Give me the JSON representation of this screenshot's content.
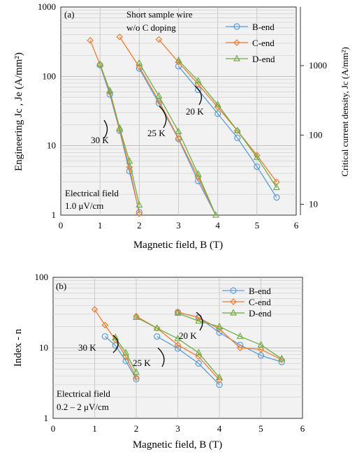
{
  "chart_data": [
    {
      "type": "line",
      "panel_label": "(a)",
      "title": "",
      "annotation_title": [
        "Short sample wire",
        "w/o C doping"
      ],
      "field_note": [
        "Electrical  field",
        "1.0 μV/cm"
      ],
      "xlabel": "Magnetic field, B (T)",
      "ylabel": "Engineering Jc , Je (A/mm²)",
      "ylabel2": "Critical current density, Jc (A/mm²)",
      "xlim": [
        0,
        6
      ],
      "ylim": [
        1,
        1000
      ],
      "y_scale": "log",
      "x_ticks": [
        "0",
        "1",
        "2",
        "3",
        "4",
        "5",
        "6"
      ],
      "y_ticks": [
        "1",
        "10",
        "100",
        "1000"
      ],
      "y2_ticks": [
        "10",
        "100",
        "1000"
      ],
      "grid": true,
      "legend_position": "top-right",
      "temperature_labels": [
        "30 K",
        "25 K",
        "20 K"
      ],
      "series": [
        {
          "name": "B-end",
          "color": "#5b9bd5",
          "marker": "circle",
          "groups": [
            {
              "x": [
                1.0,
                1.25,
                1.5,
                1.75,
                2.0
              ],
              "y": [
                145,
                55,
                16.5,
                4.3,
                1.1
              ]
            },
            {
              "x": [
                2.0,
                2.5,
                3.0,
                3.5,
                3.95
              ],
              "y": [
                130,
                41,
                12.5,
                3.1,
                0.8
              ]
            },
            {
              "x": [
                3.0,
                3.5,
                4.0,
                4.5,
                5.0,
                5.5
              ],
              "y": [
                140,
                64,
                29,
                13,
                5,
                1.8
              ]
            }
          ]
        },
        {
          "name": "C-end",
          "color": "#ed7d31",
          "marker": "diamond",
          "groups": [
            {
              "x": [
                0.75,
                1.0,
                1.25,
                1.5,
                1.75,
                2.0
              ],
              "y": [
                330,
                148,
                59,
                17,
                4.9,
                1.05
              ]
            },
            {
              "x": [
                1.5,
                2.0,
                2.5,
                3.0,
                3.5,
                3.95
              ],
              "y": [
                370,
                137,
                44,
                12.8,
                3.5,
                0.85
              ]
            },
            {
              "x": [
                2.5,
                3.0,
                3.5,
                4.0,
                4.5,
                5.0,
                5.5
              ],
              "y": [
                340,
                160,
                77,
                36,
                16.5,
                7.3,
                3
              ]
            }
          ]
        },
        {
          "name": "D-end",
          "color": "#70ad47",
          "marker": "triangle",
          "groups": [
            {
              "x": [
                1.0,
                1.25,
                1.5,
                1.75,
                2.0
              ],
              "y": [
                150,
                62,
                18,
                6,
                1.4
              ]
            },
            {
              "x": [
                2.0,
                2.5,
                3.0,
                3.5,
                3.95
              ],
              "y": [
                155,
                52,
                16,
                3.9,
                1.0
              ]
            },
            {
              "x": [
                3.0,
                3.5,
                4.0,
                4.5,
                5.0,
                5.5
              ],
              "y": [
                170,
                86,
                39,
                16.5,
                6.8,
                2.5
              ]
            }
          ]
        }
      ]
    },
    {
      "type": "line",
      "panel_label": "(b)",
      "title": "",
      "field_note": [
        "Electrical  field",
        "0.2 – 2 μV/cm"
      ],
      "xlabel": "Magnetic field, B (T)",
      "ylabel": "Index - n",
      "xlim": [
        0,
        6
      ],
      "ylim": [
        1,
        100
      ],
      "y_scale": "log",
      "x_ticks": [
        "0",
        "1",
        "2",
        "3",
        "4",
        "5",
        "6"
      ],
      "y_ticks": [
        "1",
        "10",
        "100"
      ],
      "grid": true,
      "legend_position": "top-right",
      "temperature_labels": [
        "30 K",
        "25 K",
        "20 K"
      ],
      "series": [
        {
          "name": "B-end",
          "color": "#5b9bd5",
          "marker": "circle",
          "groups": [
            {
              "x": [
                1.25,
                1.5,
                1.75,
                2.0
              ],
              "y": [
                14.5,
                10.8,
                6.5,
                3.6
              ]
            },
            {
              "x": [
                2.5,
                3.0,
                3.5,
                4.0
              ],
              "y": [
                14.5,
                9.8,
                6,
                3.0
              ]
            },
            {
              "x": [
                3.0,
                3.5,
                4.0,
                4.5,
                5.0,
                5.5
              ],
              "y": [
                32,
                27,
                16.5,
                11,
                7.8,
                6.3
              ]
            }
          ]
        },
        {
          "name": "C-end",
          "color": "#ed7d31",
          "marker": "diamond",
          "groups": [
            {
              "x": [
                1.0,
                1.25,
                1.5,
                1.75,
                2.0
              ],
              "y": [
                35,
                21,
                13,
                7.5,
                3.8
              ]
            },
            {
              "x": [
                2.0,
                2.5,
                3.0,
                3.5,
                4.0
              ],
              "y": [
                28,
                19,
                11,
                7.5,
                3.5
              ]
            },
            {
              "x": [
                3.0,
                3.5,
                4.0,
                4.5,
                5.0,
                5.5
              ],
              "y": [
                32,
                27,
                18.5,
                10,
                9.5,
                6.8
              ]
            }
          ]
        },
        {
          "name": "D-end",
          "color": "#70ad47",
          "marker": "triangle",
          "groups": [
            {
              "x": [
                1.5,
                1.75,
                2.0
              ],
              "y": [
                14,
                8.5,
                4.5
              ]
            },
            {
              "x": [
                2.0,
                2.5,
                3.0,
                3.5,
                4.0
              ],
              "y": [
                27,
                19,
                13.5,
                8.5,
                3.8
              ]
            },
            {
              "x": [
                3.0,
                3.5,
                4.0,
                4.5,
                5.0,
                5.5
              ],
              "y": [
                31,
                24,
                20,
                14.5,
                11,
                7
              ]
            }
          ]
        }
      ]
    }
  ]
}
